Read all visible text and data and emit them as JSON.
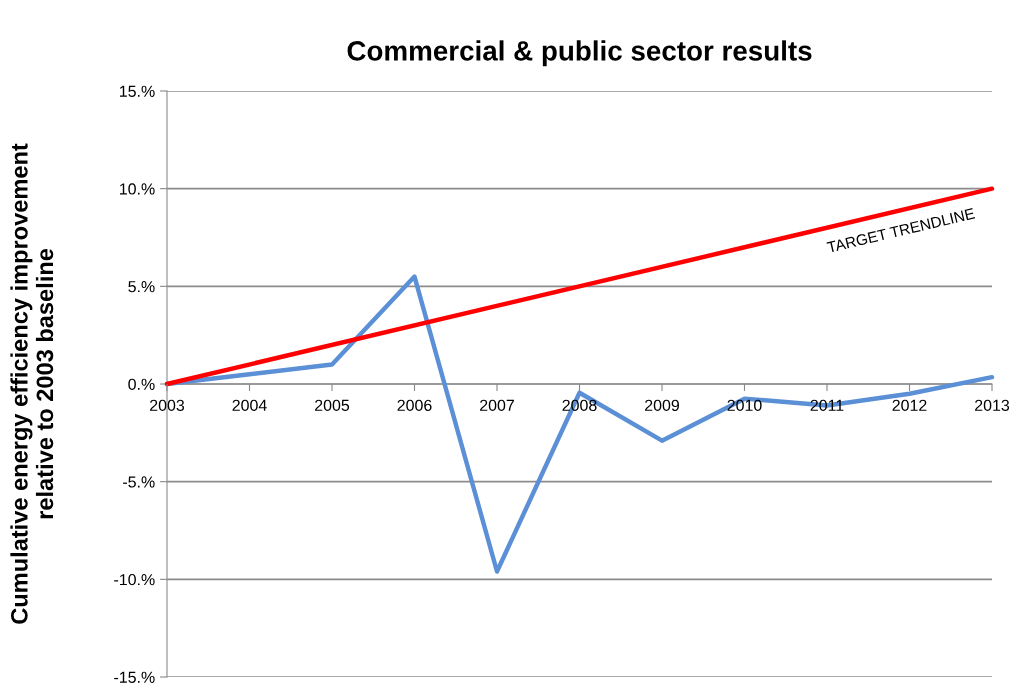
{
  "chart_data": {
    "type": "line",
    "title": "Commercial & public sector results",
    "ylabel": "Cumulative energy efficiency improvement\nrelative to 2003 baseline",
    "x": [
      2003,
      2004,
      2005,
      2006,
      2007,
      2008,
      2009,
      2010,
      2011,
      2012,
      2013
    ],
    "series": [
      {
        "color": "#5b8fd6",
        "values": [
          0,
          0.5,
          1.0,
          5.5,
          -9.6,
          -0.45,
          -2.9,
          -0.75,
          -1.1,
          -0.5,
          0.35
        ]
      },
      {
        "color": "#ff0000",
        "x": [
          2003,
          2013
        ],
        "values": [
          0,
          10
        ]
      }
    ],
    "annotations": [
      "TARGET TRENDLINE"
    ],
    "xlim": [
      2003,
      2013
    ],
    "xticks": [
      2003,
      2004,
      2005,
      2006,
      2007,
      2008,
      2009,
      2010,
      2011,
      2012,
      2013
    ],
    "ylim": [
      -15,
      15
    ],
    "yticks": [
      {
        "value": -15,
        "label": "-15.%"
      },
      {
        "value": -10,
        "label": "-10.%"
      },
      {
        "value": -5,
        "label": "-5.%"
      },
      {
        "value": 0,
        "label": "0.%"
      },
      {
        "value": 5,
        "label": "5.%"
      },
      {
        "value": 10,
        "label": "10.%"
      },
      {
        "value": 15,
        "label": "15.%"
      }
    ],
    "grid": "y",
    "marker": "none",
    "line_style": "solid"
  }
}
